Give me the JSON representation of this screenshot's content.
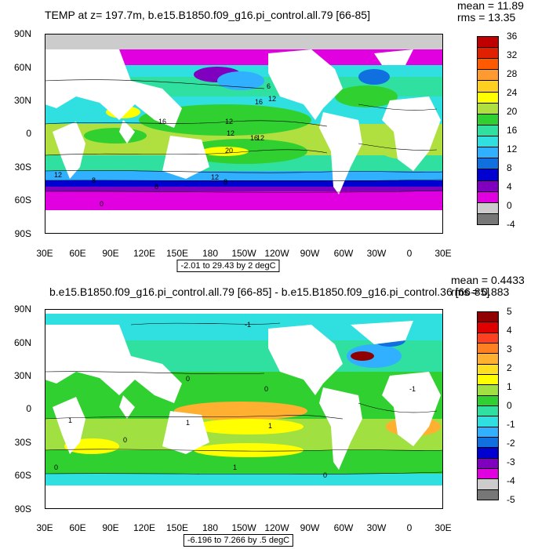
{
  "top": {
    "title": "TEMP at z= 197.7m, b.e15.B1850.f09_g16.pi_control.all.79 [66-85]",
    "mean_text": "mean = 11.89",
    "rms_text": "rms = 13.35",
    "range_text": "-2.01 to 29.43 by 2 degC",
    "lat_labels": [
      "90N",
      "60N",
      "30N",
      "0",
      "30S",
      "60S",
      "90S"
    ],
    "lon_labels": [
      "30E",
      "60E",
      "90E",
      "120E",
      "150E",
      "180",
      "150W",
      "120W",
      "90W",
      "60W",
      "30W",
      "0",
      "30E"
    ],
    "colorbar_labels": [
      "36",
      "32",
      "28",
      "24",
      "20",
      "16",
      "12",
      "8",
      "4",
      "0",
      "-4"
    ],
    "colorbar_colors": [
      "#c00000",
      "#e02000",
      "#ff5a00",
      "#ff9a30",
      "#ffd020",
      "#ffff00",
      "#b0e040",
      "#30d030",
      "#30e0a0",
      "#30e0e0",
      "#30b0ff",
      "#1070e0",
      "#0000d0",
      "#8000c0",
      "#e000e0",
      "#cccccc",
      "#777777"
    ],
    "contour_labels": [
      "16",
      "12",
      "8",
      "20",
      "12",
      "16",
      "12",
      "8",
      "12",
      "8",
      "0",
      "16",
      "12",
      "6",
      "12"
    ]
  },
  "bottom": {
    "title": "b.e15.B1850.f09_g16.pi_control.all.79 [66-85] - b.e15.B1850.f09_g16.pi_control.36 [66-85]",
    "mean_text": "mean = 0.4433",
    "rms_text": "rms = 0.883",
    "range_text": "-6.196 to 7.266 by .5 degC",
    "lat_labels": [
      "90N",
      "60N",
      "30N",
      "0",
      "30S",
      "60S",
      "90S"
    ],
    "lon_labels": [
      "30E",
      "60E",
      "90E",
      "120E",
      "150E",
      "180",
      "150W",
      "120W",
      "90W",
      "60W",
      "30W",
      "0",
      "30E"
    ],
    "colorbar_labels": [
      "5",
      "4",
      "3",
      "2",
      "1",
      "0",
      "-1",
      "-2",
      "-3",
      "-4",
      "-5"
    ],
    "colorbar_colors": [
      "#900000",
      "#e00000",
      "#ff4020",
      "#ff8020",
      "#ffb030",
      "#ffe020",
      "#ffff00",
      "#a0e040",
      "#30d030",
      "#30e0a0",
      "#30e0e0",
      "#30b0ff",
      "#1070e0",
      "#0000d0",
      "#8000c0",
      "#e000e0",
      "#cccccc",
      "#777777"
    ],
    "contour_labels": [
      "-1",
      "0",
      "0",
      "1",
      "1",
      "0",
      "0",
      "1",
      "-1",
      "0",
      "1"
    ]
  }
}
